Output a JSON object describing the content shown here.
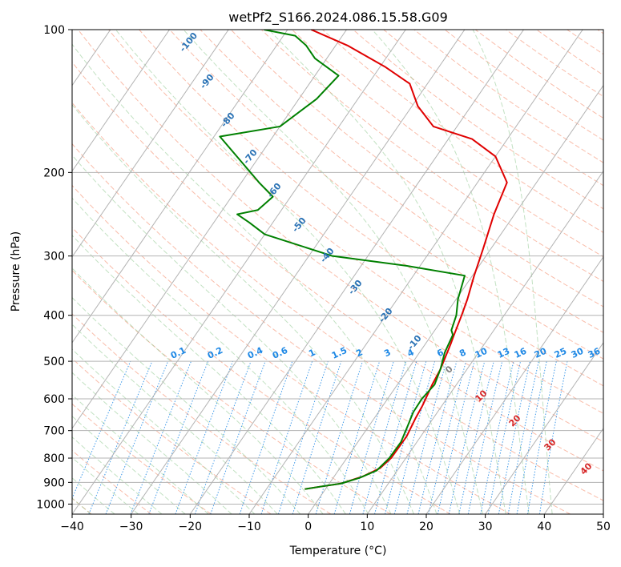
{
  "chart_data": {
    "type": "line",
    "subtype": "skew-t log-p diagram",
    "title": "wetPf2_S166.2024.086.15.58.G09",
    "xlabel": "Temperature (°C)",
    "ylabel": "Pressure (hPa)",
    "xlim": [
      -40,
      50
    ],
    "ylim": [
      1050,
      100
    ],
    "y_scale": "log",
    "x_ticks": [
      "−40",
      "−30",
      "−20",
      "−10",
      "0",
      "10",
      "20",
      "30",
      "40",
      "50"
    ],
    "y_ticks": [
      "100",
      "200",
      "300",
      "400",
      "500",
      "600",
      "700",
      "800",
      "900",
      "1000"
    ],
    "grid": true,
    "series": [
      {
        "color": "#e00000",
        "x": [
          -3.5,
          -1,
          2,
          4.8,
          6.8,
          7.5,
          7.6,
          7.0,
          6.7,
          5.9,
          5.5,
          4.3,
          3.8,
          2.8,
          1.9,
          0.3,
          -1.3,
          -3.5,
          -5.0,
          -10,
          -16,
          -24,
          -29,
          -33,
          -39,
          -48,
          -56
        ],
        "y": [
          930,
          918,
          905,
          875,
          840,
          800,
          720,
          660,
          620,
          560,
          520,
          460,
          440,
          400,
          370,
          330,
          290,
          245,
          210,
          185,
          170,
          160,
          145,
          130,
          120,
          108,
          100
        ]
      },
      {
        "color": "#008000",
        "x": [
          -3.5,
          -1,
          2,
          4.5,
          6.5,
          7.2,
          7.3,
          6.5,
          5.9,
          5.8,
          6.3,
          5.5,
          4.3,
          3.6,
          2.8,
          1.9,
          0.3,
          -1.3,
          -12,
          -26,
          -40,
          -44,
          -47,
          -44,
          -43,
          -47,
          -59,
          -50,
          -47,
          -46,
          -52,
          -55,
          -58,
          -64
        ],
        "y": [
          930,
          918,
          905,
          880,
          850,
          800,
          740,
          680,
          640,
          600,
          560,
          520,
          480,
          440,
          430,
          400,
          370,
          330,
          315,
          300,
          270,
          255,
          245,
          240,
          225,
          210,
          168,
          160,
          140,
          125,
          115,
          108,
          103,
          100
        ]
      }
    ],
    "isotherm_labels": {
      "values": [
        "-100",
        "-90",
        "-80",
        "-70",
        "-60",
        "-50",
        "-40",
        "-30",
        "-20",
        "-10"
      ],
      "color": "#2a72b5"
    },
    "mixing_ratio_labels": {
      "values": [
        "0.1",
        "0.2",
        "0.4",
        "0.6",
        "1",
        "1.5",
        "2",
        "3",
        "4",
        "6",
        "8",
        "10",
        "13",
        "16",
        "20",
        "25",
        "30",
        "36"
      ],
      "color": "#1e88e5"
    },
    "dry_adiabat_labels": {
      "values": [
        "0",
        "10",
        "20",
        "30",
        "40"
      ],
      "colors": [
        "#808080",
        "#d62728",
        "#d62728",
        "#d62728",
        "#d62728"
      ]
    }
  }
}
